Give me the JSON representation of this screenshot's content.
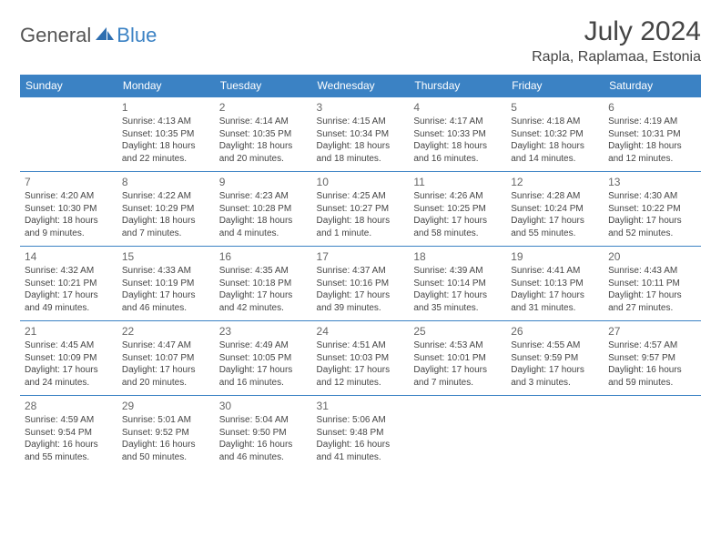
{
  "logo": {
    "general": "General",
    "blue": "Blue"
  },
  "title": "July 2024",
  "location": "Rapla, Raplamaa, Estonia",
  "header_bg": "#3b82c4",
  "day_headers": [
    "Sunday",
    "Monday",
    "Tuesday",
    "Wednesday",
    "Thursday",
    "Friday",
    "Saturday"
  ],
  "weeks": [
    [
      null,
      {
        "n": "1",
        "sr": "Sunrise: 4:13 AM",
        "ss": "Sunset: 10:35 PM",
        "d1": "Daylight: 18 hours",
        "d2": "and 22 minutes."
      },
      {
        "n": "2",
        "sr": "Sunrise: 4:14 AM",
        "ss": "Sunset: 10:35 PM",
        "d1": "Daylight: 18 hours",
        "d2": "and 20 minutes."
      },
      {
        "n": "3",
        "sr": "Sunrise: 4:15 AM",
        "ss": "Sunset: 10:34 PM",
        "d1": "Daylight: 18 hours",
        "d2": "and 18 minutes."
      },
      {
        "n": "4",
        "sr": "Sunrise: 4:17 AM",
        "ss": "Sunset: 10:33 PM",
        "d1": "Daylight: 18 hours",
        "d2": "and 16 minutes."
      },
      {
        "n": "5",
        "sr": "Sunrise: 4:18 AM",
        "ss": "Sunset: 10:32 PM",
        "d1": "Daylight: 18 hours",
        "d2": "and 14 minutes."
      },
      {
        "n": "6",
        "sr": "Sunrise: 4:19 AM",
        "ss": "Sunset: 10:31 PM",
        "d1": "Daylight: 18 hours",
        "d2": "and 12 minutes."
      }
    ],
    [
      {
        "n": "7",
        "sr": "Sunrise: 4:20 AM",
        "ss": "Sunset: 10:30 PM",
        "d1": "Daylight: 18 hours",
        "d2": "and 9 minutes."
      },
      {
        "n": "8",
        "sr": "Sunrise: 4:22 AM",
        "ss": "Sunset: 10:29 PM",
        "d1": "Daylight: 18 hours",
        "d2": "and 7 minutes."
      },
      {
        "n": "9",
        "sr": "Sunrise: 4:23 AM",
        "ss": "Sunset: 10:28 PM",
        "d1": "Daylight: 18 hours",
        "d2": "and 4 minutes."
      },
      {
        "n": "10",
        "sr": "Sunrise: 4:25 AM",
        "ss": "Sunset: 10:27 PM",
        "d1": "Daylight: 18 hours",
        "d2": "and 1 minute."
      },
      {
        "n": "11",
        "sr": "Sunrise: 4:26 AM",
        "ss": "Sunset: 10:25 PM",
        "d1": "Daylight: 17 hours",
        "d2": "and 58 minutes."
      },
      {
        "n": "12",
        "sr": "Sunrise: 4:28 AM",
        "ss": "Sunset: 10:24 PM",
        "d1": "Daylight: 17 hours",
        "d2": "and 55 minutes."
      },
      {
        "n": "13",
        "sr": "Sunrise: 4:30 AM",
        "ss": "Sunset: 10:22 PM",
        "d1": "Daylight: 17 hours",
        "d2": "and 52 minutes."
      }
    ],
    [
      {
        "n": "14",
        "sr": "Sunrise: 4:32 AM",
        "ss": "Sunset: 10:21 PM",
        "d1": "Daylight: 17 hours",
        "d2": "and 49 minutes."
      },
      {
        "n": "15",
        "sr": "Sunrise: 4:33 AM",
        "ss": "Sunset: 10:19 PM",
        "d1": "Daylight: 17 hours",
        "d2": "and 46 minutes."
      },
      {
        "n": "16",
        "sr": "Sunrise: 4:35 AM",
        "ss": "Sunset: 10:18 PM",
        "d1": "Daylight: 17 hours",
        "d2": "and 42 minutes."
      },
      {
        "n": "17",
        "sr": "Sunrise: 4:37 AM",
        "ss": "Sunset: 10:16 PM",
        "d1": "Daylight: 17 hours",
        "d2": "and 39 minutes."
      },
      {
        "n": "18",
        "sr": "Sunrise: 4:39 AM",
        "ss": "Sunset: 10:14 PM",
        "d1": "Daylight: 17 hours",
        "d2": "and 35 minutes."
      },
      {
        "n": "19",
        "sr": "Sunrise: 4:41 AM",
        "ss": "Sunset: 10:13 PM",
        "d1": "Daylight: 17 hours",
        "d2": "and 31 minutes."
      },
      {
        "n": "20",
        "sr": "Sunrise: 4:43 AM",
        "ss": "Sunset: 10:11 PM",
        "d1": "Daylight: 17 hours",
        "d2": "and 27 minutes."
      }
    ],
    [
      {
        "n": "21",
        "sr": "Sunrise: 4:45 AM",
        "ss": "Sunset: 10:09 PM",
        "d1": "Daylight: 17 hours",
        "d2": "and 24 minutes."
      },
      {
        "n": "22",
        "sr": "Sunrise: 4:47 AM",
        "ss": "Sunset: 10:07 PM",
        "d1": "Daylight: 17 hours",
        "d2": "and 20 minutes."
      },
      {
        "n": "23",
        "sr": "Sunrise: 4:49 AM",
        "ss": "Sunset: 10:05 PM",
        "d1": "Daylight: 17 hours",
        "d2": "and 16 minutes."
      },
      {
        "n": "24",
        "sr": "Sunrise: 4:51 AM",
        "ss": "Sunset: 10:03 PM",
        "d1": "Daylight: 17 hours",
        "d2": "and 12 minutes."
      },
      {
        "n": "25",
        "sr": "Sunrise: 4:53 AM",
        "ss": "Sunset: 10:01 PM",
        "d1": "Daylight: 17 hours",
        "d2": "and 7 minutes."
      },
      {
        "n": "26",
        "sr": "Sunrise: 4:55 AM",
        "ss": "Sunset: 9:59 PM",
        "d1": "Daylight: 17 hours",
        "d2": "and 3 minutes."
      },
      {
        "n": "27",
        "sr": "Sunrise: 4:57 AM",
        "ss": "Sunset: 9:57 PM",
        "d1": "Daylight: 16 hours",
        "d2": "and 59 minutes."
      }
    ],
    [
      {
        "n": "28",
        "sr": "Sunrise: 4:59 AM",
        "ss": "Sunset: 9:54 PM",
        "d1": "Daylight: 16 hours",
        "d2": "and 55 minutes."
      },
      {
        "n": "29",
        "sr": "Sunrise: 5:01 AM",
        "ss": "Sunset: 9:52 PM",
        "d1": "Daylight: 16 hours",
        "d2": "and 50 minutes."
      },
      {
        "n": "30",
        "sr": "Sunrise: 5:04 AM",
        "ss": "Sunset: 9:50 PM",
        "d1": "Daylight: 16 hours",
        "d2": "and 46 minutes."
      },
      {
        "n": "31",
        "sr": "Sunrise: 5:06 AM",
        "ss": "Sunset: 9:48 PM",
        "d1": "Daylight: 16 hours",
        "d2": "and 41 minutes."
      },
      null,
      null,
      null
    ]
  ]
}
